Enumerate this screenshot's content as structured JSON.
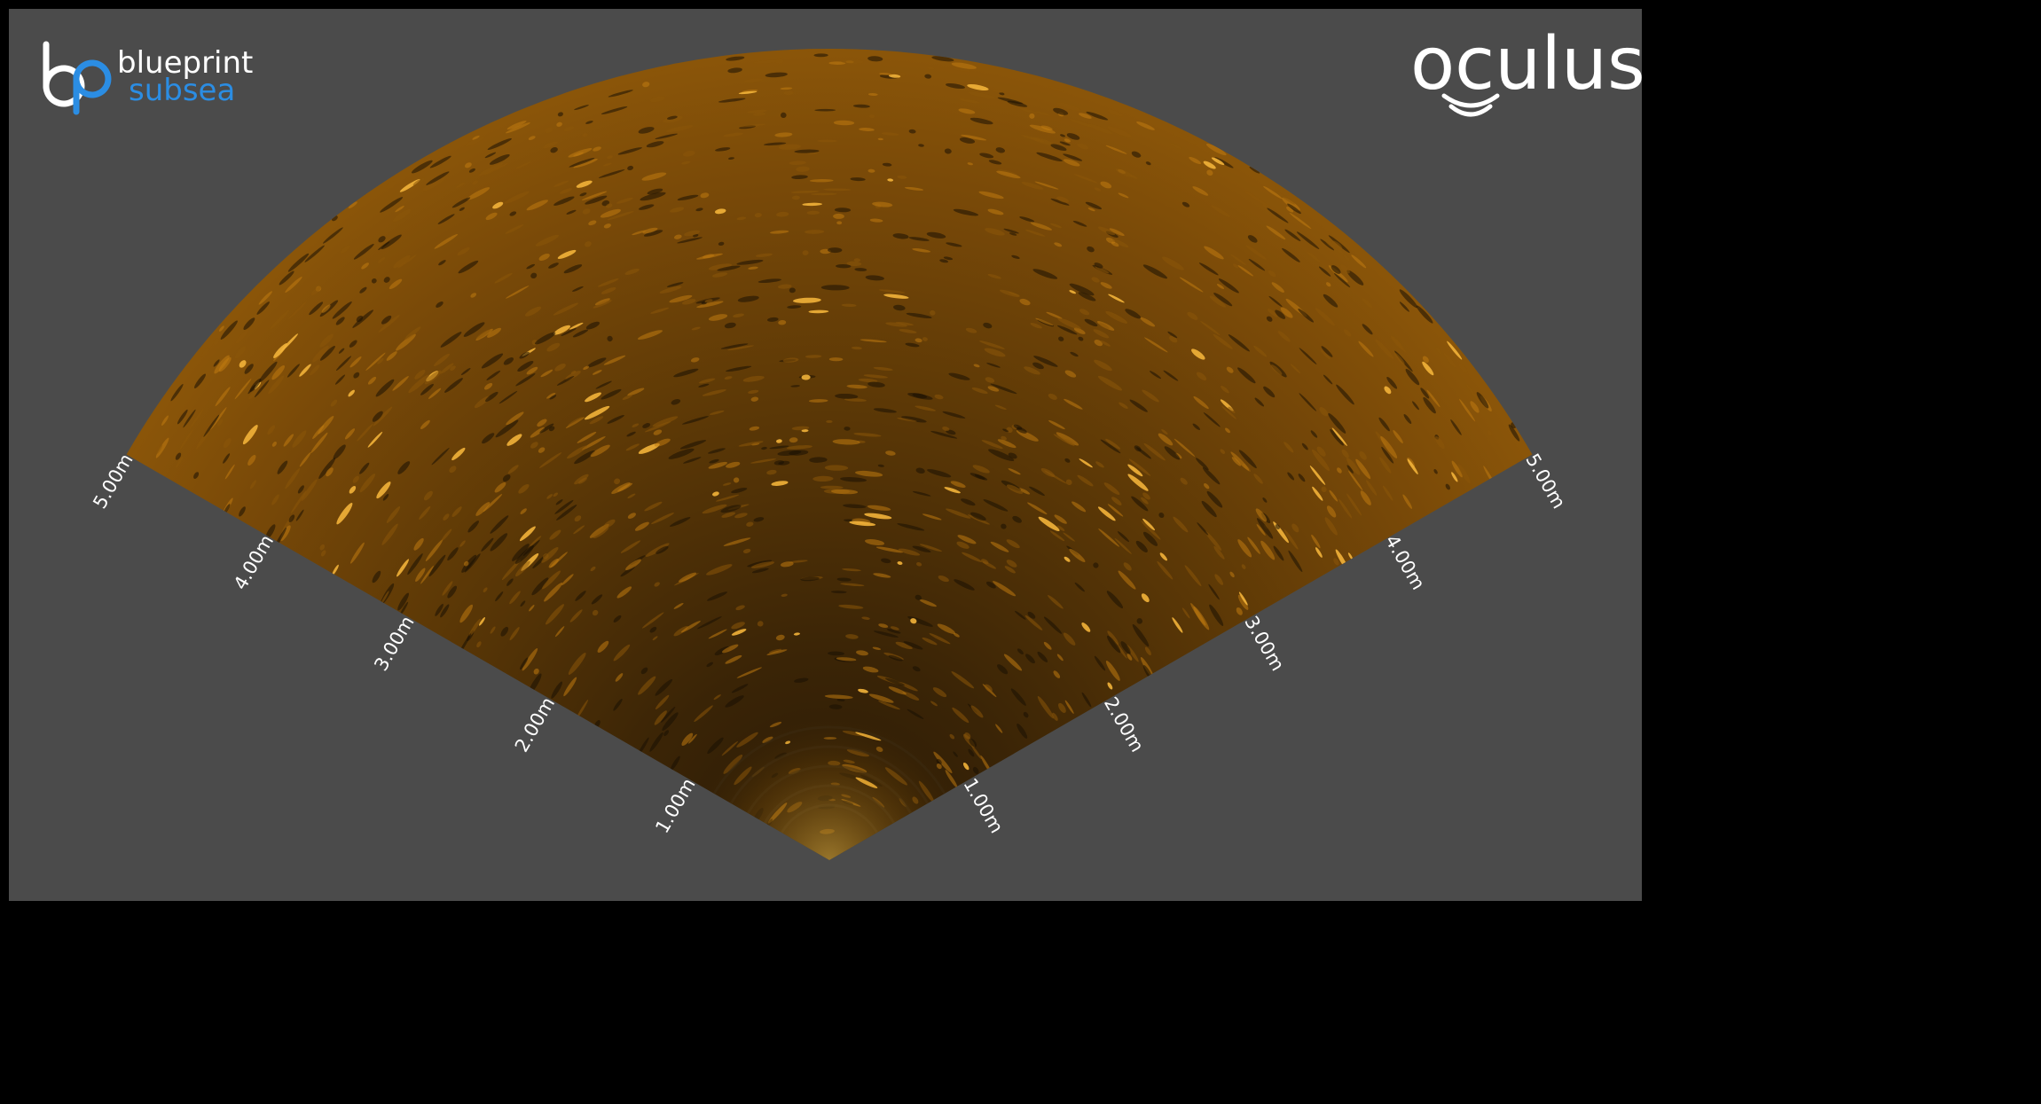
{
  "branding": {
    "left_logo_top": "blueprint",
    "left_logo_bottom": "subsea",
    "right_logo": "oculus",
    "colors": {
      "blueprint_blue": "#2b8de3",
      "white": "#ffffff"
    }
  },
  "sonar": {
    "range_max": "5.00m",
    "left_edge_labels": [
      "1.00m",
      "2.00m",
      "3.00m",
      "4.00m",
      "5.00m"
    ],
    "right_edge_labels": [
      "1.00m",
      "2.00m",
      "3.00m",
      "4.00m",
      "5.00m"
    ],
    "colors": {
      "background": "#4b4b4b",
      "echo_dark": "#1a1104",
      "echo_mid": "#7a4a08",
      "echo_bright": "#f2a51c"
    }
  }
}
